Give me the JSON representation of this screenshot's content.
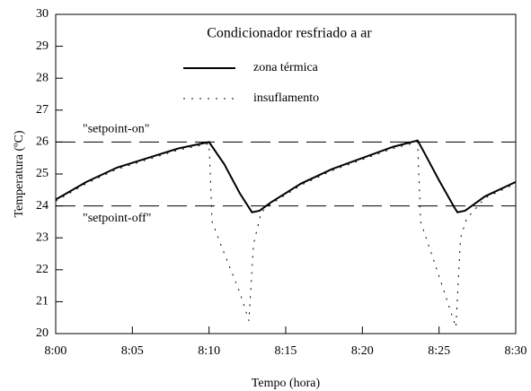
{
  "chart_data": {
    "type": "line",
    "title": "Condicionador resfriado a ar",
    "x_label": "Tempo (hora)",
    "y_label": "Temperatura (ºC)",
    "xlim": [
      0,
      30
    ],
    "xticks": [
      {
        "value": 0,
        "label": "8:00"
      },
      {
        "value": 5,
        "label": "8:05"
      },
      {
        "value": 10,
        "label": "8:10"
      },
      {
        "value": 15,
        "label": "8:15"
      },
      {
        "value": 20,
        "label": "8:20"
      },
      {
        "value": 25,
        "label": "8:25"
      },
      {
        "value": 30,
        "label": "8:30"
      }
    ],
    "ylim": [
      20,
      30
    ],
    "yticks": [
      20,
      21,
      22,
      23,
      24,
      25,
      26,
      27,
      28,
      29,
      30
    ],
    "reference_lines": [
      {
        "label": "\"setpoint-on\"",
        "value": 26
      },
      {
        "label": "\"setpoint-off\"",
        "value": 24
      }
    ],
    "series": [
      {
        "name": "zona térmica",
        "color": "#000000",
        "style": "solid",
        "x": [
          0,
          2,
          4,
          6,
          8,
          10,
          11,
          12,
          12.8,
          13.3,
          14,
          16,
          18,
          20,
          22,
          23.6,
          24,
          25,
          26,
          26.2,
          26.7,
          28,
          30
        ],
        "values": [
          24.2,
          24.75,
          25.2,
          25.5,
          25.8,
          26.0,
          25.3,
          24.4,
          23.8,
          23.85,
          24.1,
          24.7,
          25.15,
          25.5,
          25.85,
          26.05,
          25.7,
          24.8,
          23.95,
          23.8,
          23.85,
          24.3,
          24.75
        ]
      },
      {
        "name": "insuflamento",
        "color": "#000000",
        "style": "dotted",
        "x": [
          0,
          2,
          4,
          6,
          8,
          10,
          10.2,
          11,
          12,
          12.6,
          12.9,
          13.4,
          14,
          16,
          18,
          20,
          22,
          23.6,
          23.8,
          25,
          26.1,
          26.4,
          26.8,
          28,
          30
        ],
        "values": [
          24.15,
          24.7,
          25.15,
          25.45,
          25.75,
          25.95,
          23.5,
          22.5,
          21.3,
          20.4,
          22.8,
          23.8,
          24.05,
          24.65,
          25.1,
          25.45,
          25.8,
          26.0,
          23.5,
          21.8,
          20.2,
          23.0,
          23.6,
          24.25,
          24.7
        ]
      }
    ]
  }
}
